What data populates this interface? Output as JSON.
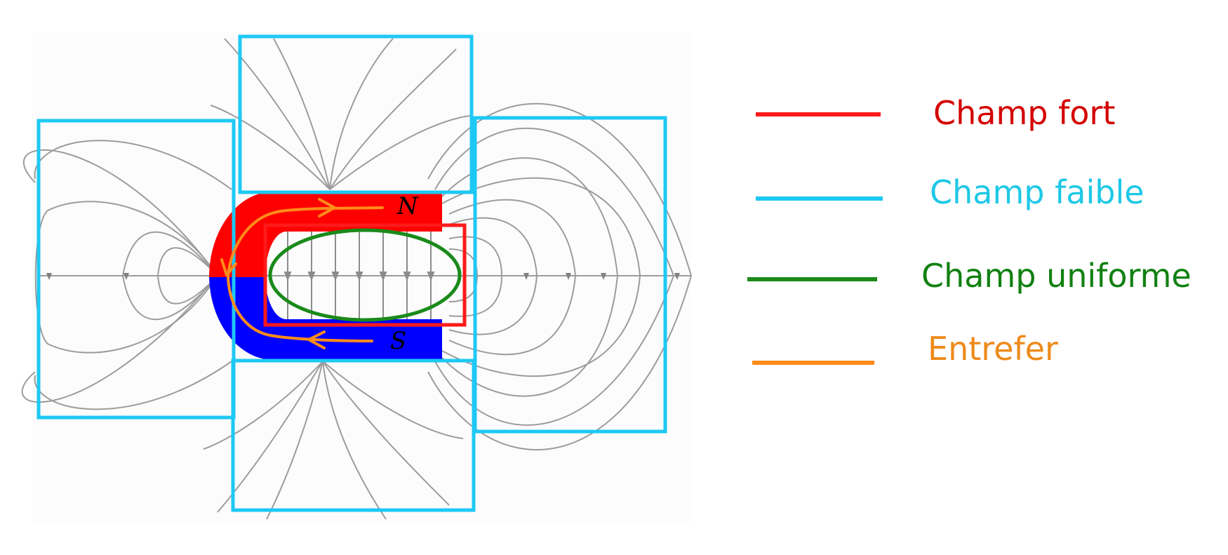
{
  "magnet": {
    "north_label": "N",
    "south_label": "S",
    "north_color": "#ff0000",
    "south_color": "#0000ff"
  },
  "legend": {
    "items": [
      {
        "label": "Champ fort",
        "color": "#d40000",
        "line_color": "#ff1a1a"
      },
      {
        "label": "Champ faible",
        "color": "#1ec8e6",
        "line_color": "#1ec8f5"
      },
      {
        "label": "Champ uniforme",
        "color": "#118011",
        "line_color": "#1a8a1a"
      },
      {
        "label": "Entrefer",
        "color": "#ee8a1a",
        "line_color": "#ff8c1a"
      }
    ]
  },
  "colors": {
    "field_lines": "#8c8c8c",
    "weak_field_boxes": "#1ec8f5",
    "strong_field_box": "#ff1a1a",
    "uniform_field_ellipse": "#1a8a1a",
    "air_gap_path": "#ff8c1a"
  }
}
